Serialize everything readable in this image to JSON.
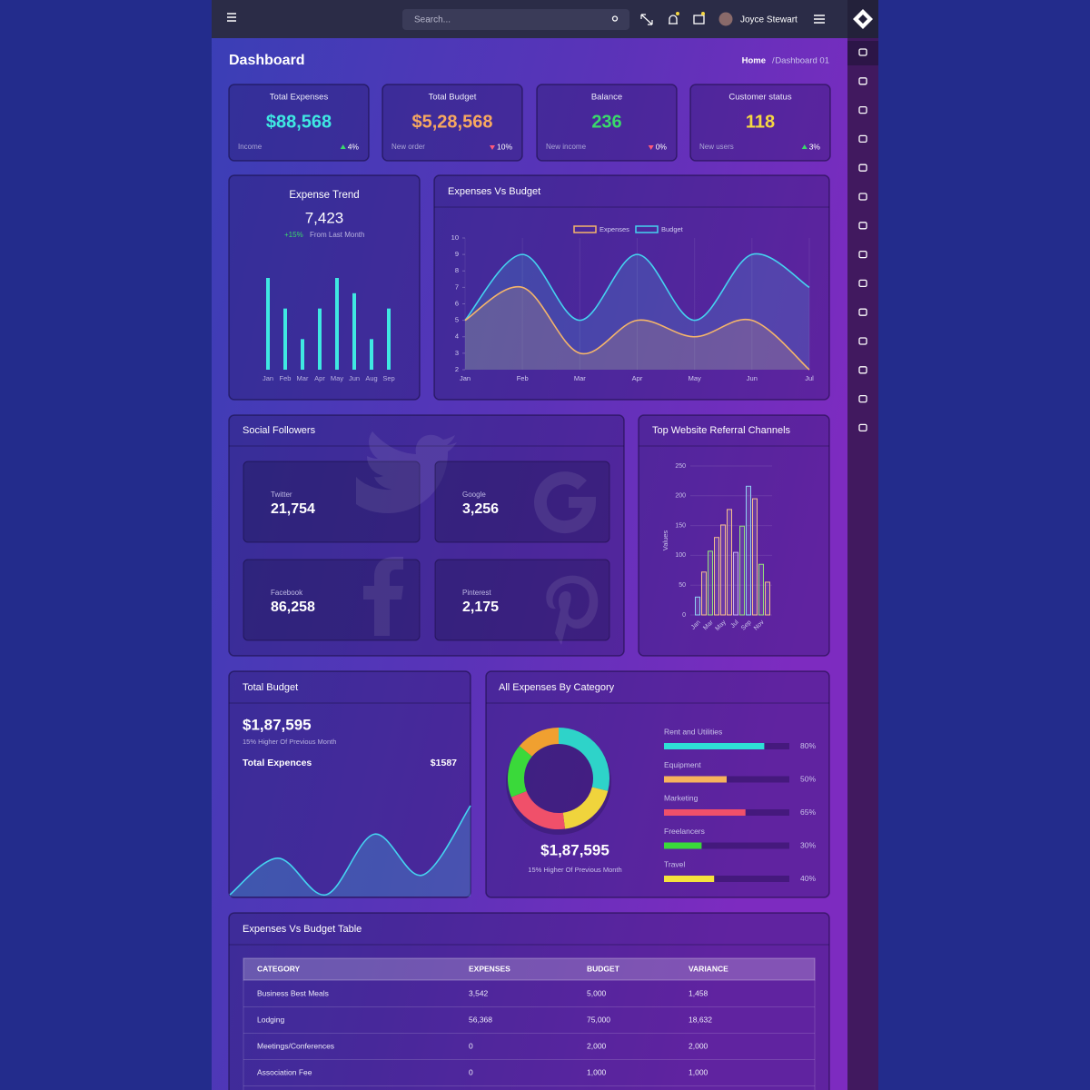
{
  "header": {
    "search_placeholder": "Search...",
    "user_name": "Joyce Stewart"
  },
  "page": {
    "title": "Dashboard",
    "breadcrumb": [
      "Home",
      "Dashboard 01"
    ]
  },
  "stats": [
    {
      "title": "Total Expenses",
      "value": "$88,568",
      "color": "#3fe8e2",
      "subtitle": "Income",
      "change": "4%",
      "trend": "up"
    },
    {
      "title": "Total Budget",
      "value": "$5,28,568",
      "color": "#f7a860",
      "subtitle": "New order",
      "change": "10%",
      "trend": "down"
    },
    {
      "title": "Balance",
      "value": "236",
      "color": "#3ad96b",
      "subtitle": "New income",
      "change": "0%",
      "trend": "down"
    },
    {
      "title": "Customer status",
      "value": "118",
      "color": "#f5d742",
      "subtitle": "New users",
      "change": "3%",
      "trend": "up"
    }
  ],
  "expense_trend": {
    "type": "bar",
    "title": "Expense Trend",
    "total": "7,423",
    "change": "+15%",
    "note": "From Last Month",
    "categories": [
      "Jan",
      "Feb",
      "Mar",
      "Apr",
      "May",
      "Jun",
      "Aug",
      "Sep"
    ],
    "values": [
      6,
      4,
      2,
      4,
      6,
      5,
      2,
      4
    ],
    "ylim": [
      0,
      6
    ],
    "color": "#3fe8e2"
  },
  "expenses_vs_budget": {
    "type": "line",
    "title": "Expenses Vs Budget",
    "categories": [
      "Jan",
      "Feb",
      "Mar",
      "Apr",
      "May",
      "Jun",
      "Jul"
    ],
    "series": [
      {
        "name": "Expenses",
        "color": "#f5b56a",
        "values": [
          5,
          7,
          3,
          5,
          4,
          5,
          2
        ]
      },
      {
        "name": "Budget",
        "color": "#45d3f0",
        "values": [
          5,
          9,
          5,
          9,
          5,
          9,
          7
        ]
      }
    ],
    "ylim": [
      2,
      10
    ],
    "yticks": [
      2,
      3,
      4,
      5,
      6,
      7,
      8,
      9,
      10
    ]
  },
  "social": {
    "title": "Social Followers",
    "cards": [
      {
        "name": "Twitter",
        "value": "21,754"
      },
      {
        "name": "Google",
        "value": "3,256"
      },
      {
        "name": "Facebook",
        "value": "86,258"
      },
      {
        "name": "Pinterest",
        "value": "2,175"
      }
    ]
  },
  "referral": {
    "type": "bar",
    "title": "Top Website Referral Channels",
    "ylabel": "Values",
    "categories": [
      "Jan",
      null,
      "Mar",
      null,
      "May",
      null,
      "Jul",
      null,
      "Sep",
      null,
      "Nov",
      null
    ],
    "values": [
      30,
      72,
      107,
      130,
      151,
      177,
      105,
      149,
      216,
      195,
      85,
      55
    ],
    "colors": [
      "#8fd0f5",
      "#f5bd8e",
      "#93e07c",
      "#f5bd8e",
      "#f5bd8e",
      "#f5bd8e",
      "#c9aef2",
      "#93e07c",
      "#8fd0f5",
      "#f5bd8e",
      "#93e07c",
      "#f5bd8e"
    ],
    "ylim": [
      0,
      250
    ],
    "yticks": [
      0,
      50,
      100,
      150,
      200,
      250
    ]
  },
  "total_budget": {
    "type": "area",
    "title": "Total Budget",
    "value": "$1,87,595",
    "note": "15% Higher Of Previous Month",
    "label": "Total Expences",
    "amount": "$1587",
    "values": [
      0,
      41,
      0,
      68,
      22,
      100
    ],
    "ylim": [
      0,
      100
    ],
    "color": "#45d3f0"
  },
  "categories": {
    "title": "All Expenses By Category",
    "donut": [
      {
        "color": "#2ed3c9",
        "value": 29
      },
      {
        "color": "#f0d43c",
        "value": 19
      },
      {
        "color": "#f0506a",
        "value": 21
      },
      {
        "color": "#3ad93a",
        "value": 17
      },
      {
        "color": "#f0a030",
        "value": 14
      }
    ],
    "total": "$1,87,595",
    "note": "15% Higher Of Previous Month",
    "items": [
      {
        "name": "Rent and Utilities",
        "value": 80,
        "value_label": "80%",
        "color": "#2ee0d6"
      },
      {
        "name": "Equipment",
        "value": 50,
        "value_label": "50%",
        "color": "#f7b35c"
      },
      {
        "name": "Marketing",
        "value": 65,
        "value_label": "65%",
        "color": "#f0506a"
      },
      {
        "name": "Freelancers",
        "value": 30,
        "value_label": "30%",
        "color": "#3ad93a"
      },
      {
        "name": "Travel",
        "value": 40,
        "value_label": "40%",
        "color": "#f5e23c"
      }
    ]
  },
  "table": {
    "title": "Expenses Vs Budget Table",
    "columns": [
      "CATEGORY",
      "EXPENSES",
      "BUDGET",
      "VARIANCE"
    ],
    "rows": [
      [
        "Business Best Meals",
        "3,542",
        "5,000",
        "1,458"
      ],
      [
        "Lodging",
        "56,368",
        "75,000",
        "18,632"
      ],
      [
        "Meetings/Conferences",
        "0",
        "2,000",
        "2,000"
      ],
      [
        "Association Fee",
        "0",
        "1,000",
        "1,000"
      ]
    ]
  }
}
